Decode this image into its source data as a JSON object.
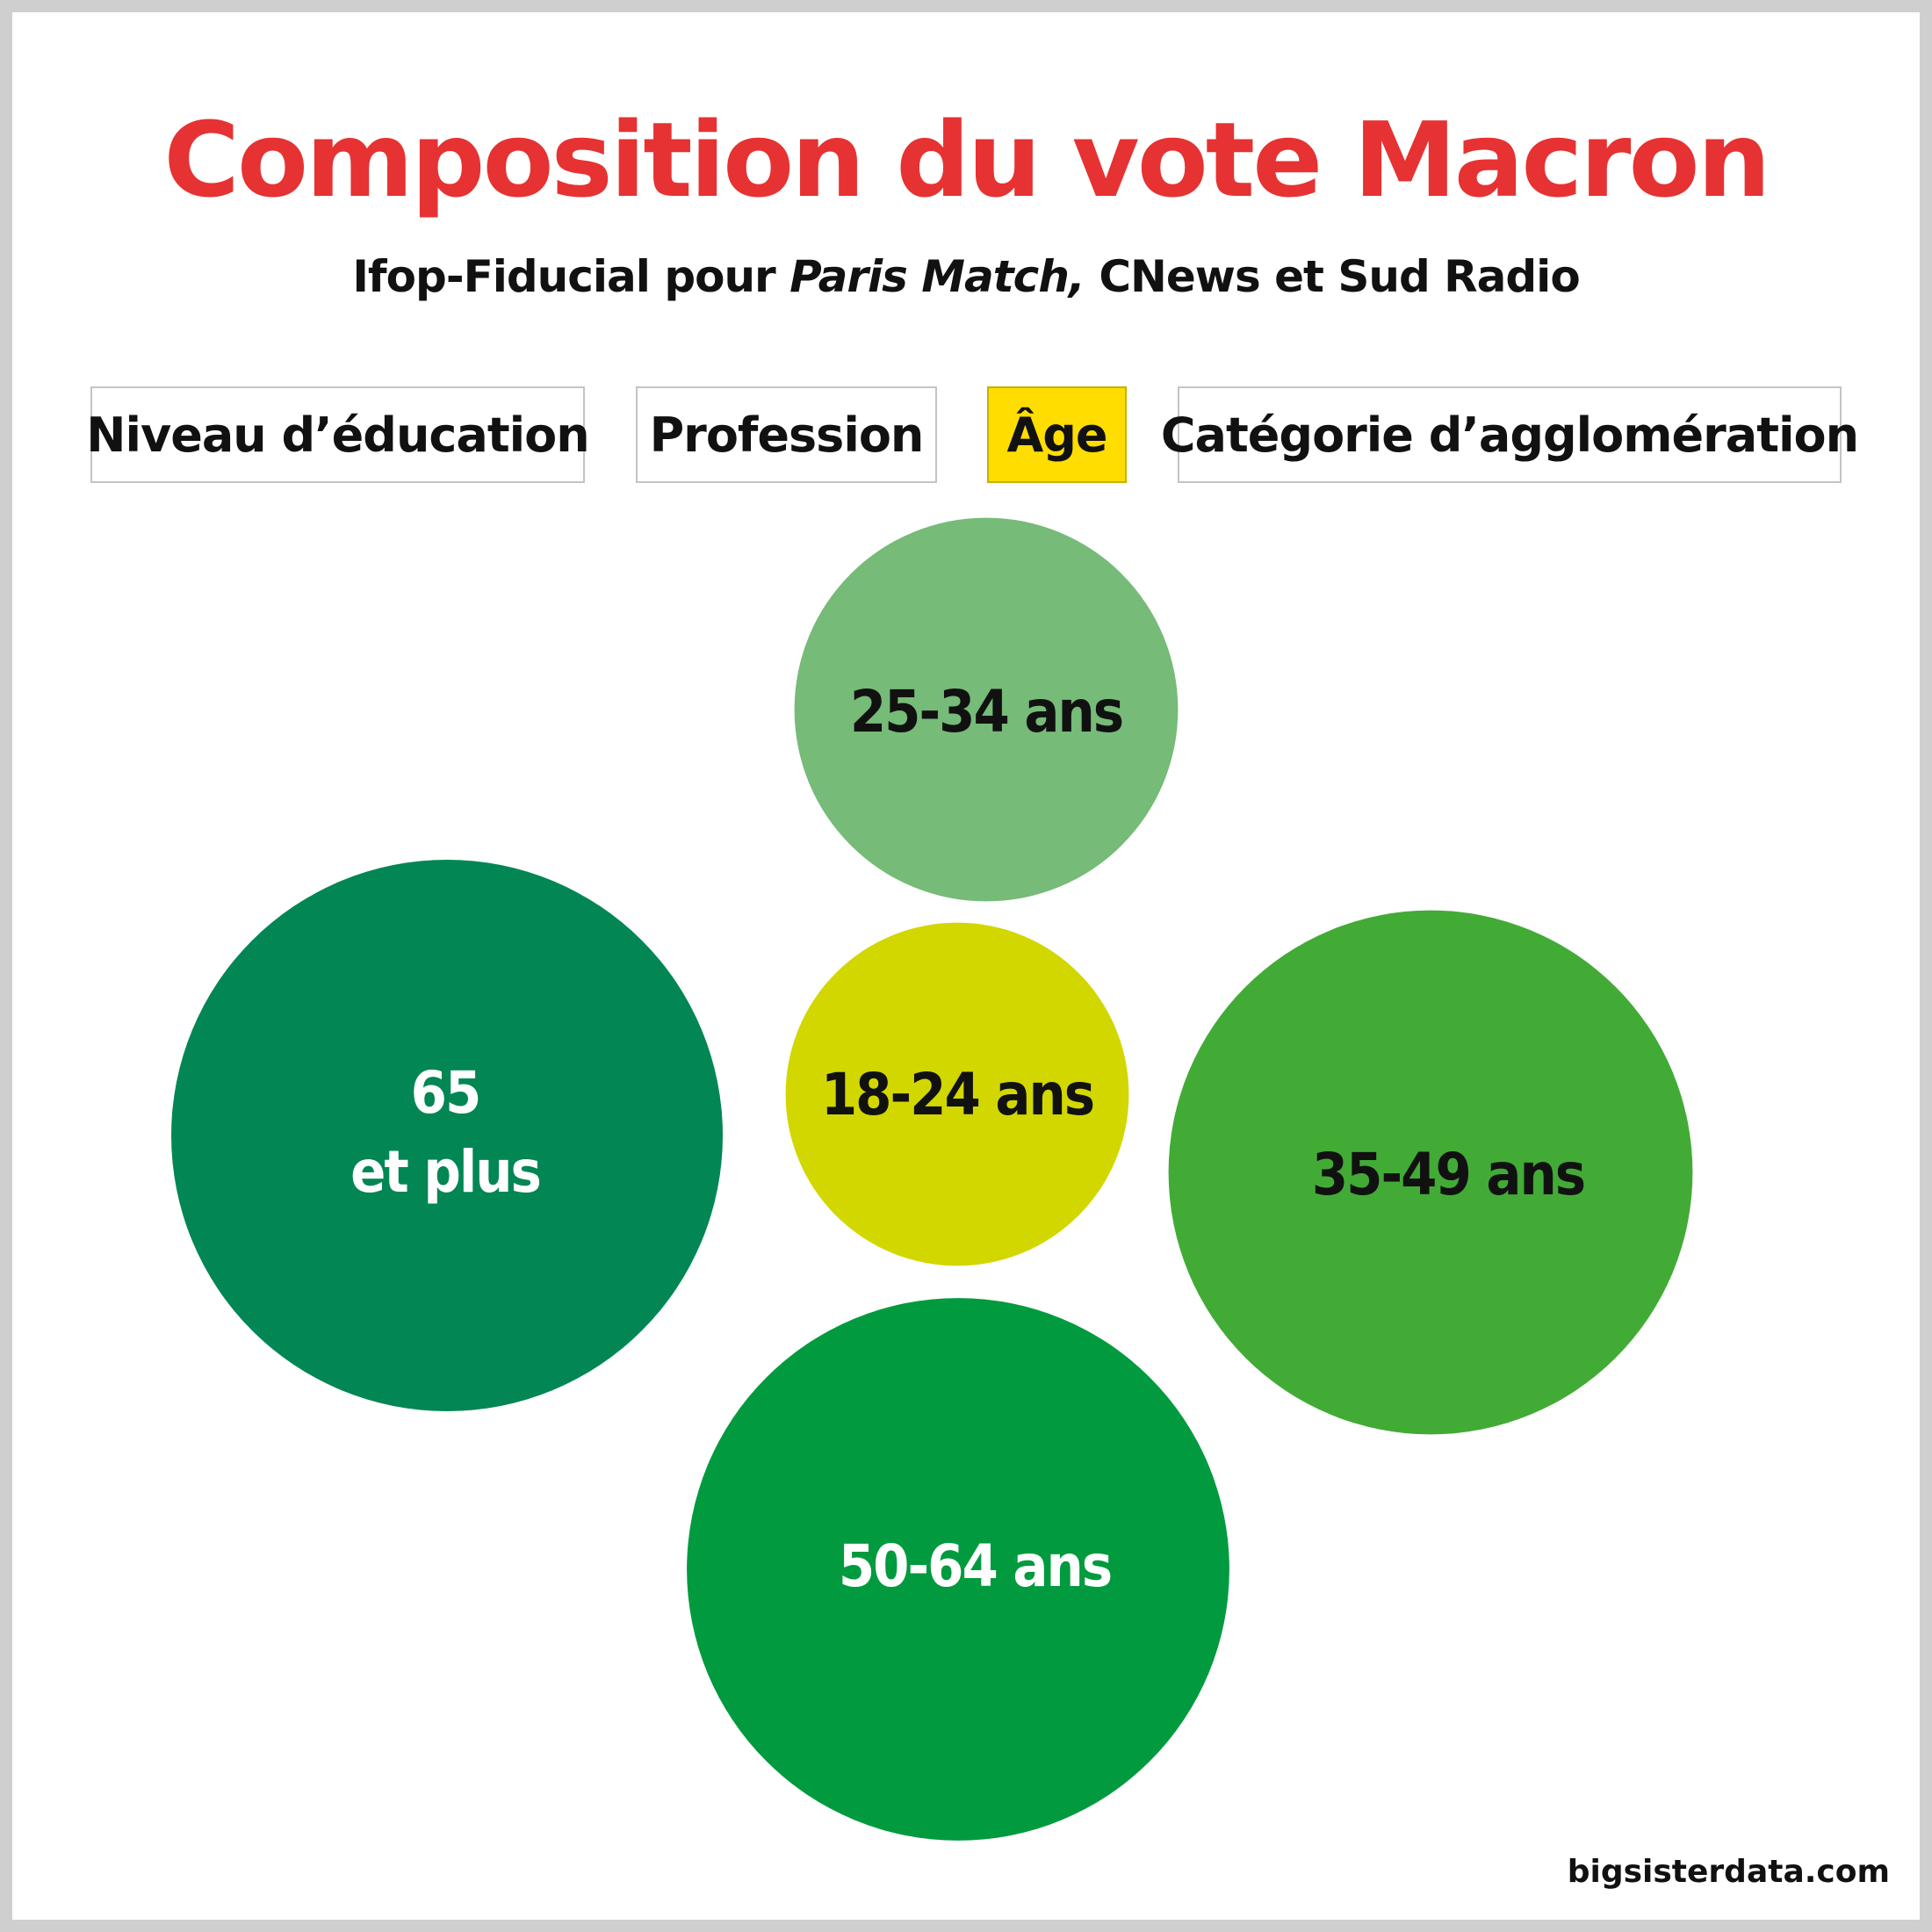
{
  "title": "Composition du vote Macron",
  "subtitle": {
    "part1": "Ifop-Fiducial pour ",
    "part2": "Paris Match,",
    "part3": " CNews et Sud Radio"
  },
  "tabs": [
    {
      "label": "Niveau d’éducation",
      "active": false
    },
    {
      "label": "Profession",
      "active": false
    },
    {
      "label": "Âge",
      "active": true
    },
    {
      "label": "Catégorie d’agglomération",
      "active": false
    }
  ],
  "colors": {
    "title": "#e63232",
    "active_tab": "#ffdd00",
    "text_dark": "#111111",
    "text_light": "#ffffff"
  },
  "credit": "bigsisterdata.com",
  "chart_data": {
    "type": "bubble",
    "title": "Composition du vote Macron",
    "subtitle": "Ifop-Fiducial pour Paris Match, CNews et Sud Radio",
    "selected_dimension": "Âge",
    "bubbles": [
      {
        "label": "25-34 ans",
        "lines": [
          "25-34 ans"
        ],
        "value": 15,
        "color": "#76bb78",
        "text_color": "#111111"
      },
      {
        "label": "65 et plus",
        "lines": [
          "65",
          "et plus"
        ],
        "value": 31,
        "color": "#028654",
        "text_color": "#ffffff"
      },
      {
        "label": "18-24 ans",
        "lines": [
          "18-24 ans"
        ],
        "value": 12,
        "color": "#d2d700",
        "text_color": "#111111"
      },
      {
        "label": "35-49 ans",
        "lines": [
          "35-49 ans"
        ],
        "value": 28,
        "color": "#42ab36",
        "text_color": "#111111"
      },
      {
        "label": "50-64 ans",
        "lines": [
          "50-64 ans"
        ],
        "value": 30,
        "color": "#029a3e",
        "text_color": "#ffffff"
      }
    ]
  }
}
